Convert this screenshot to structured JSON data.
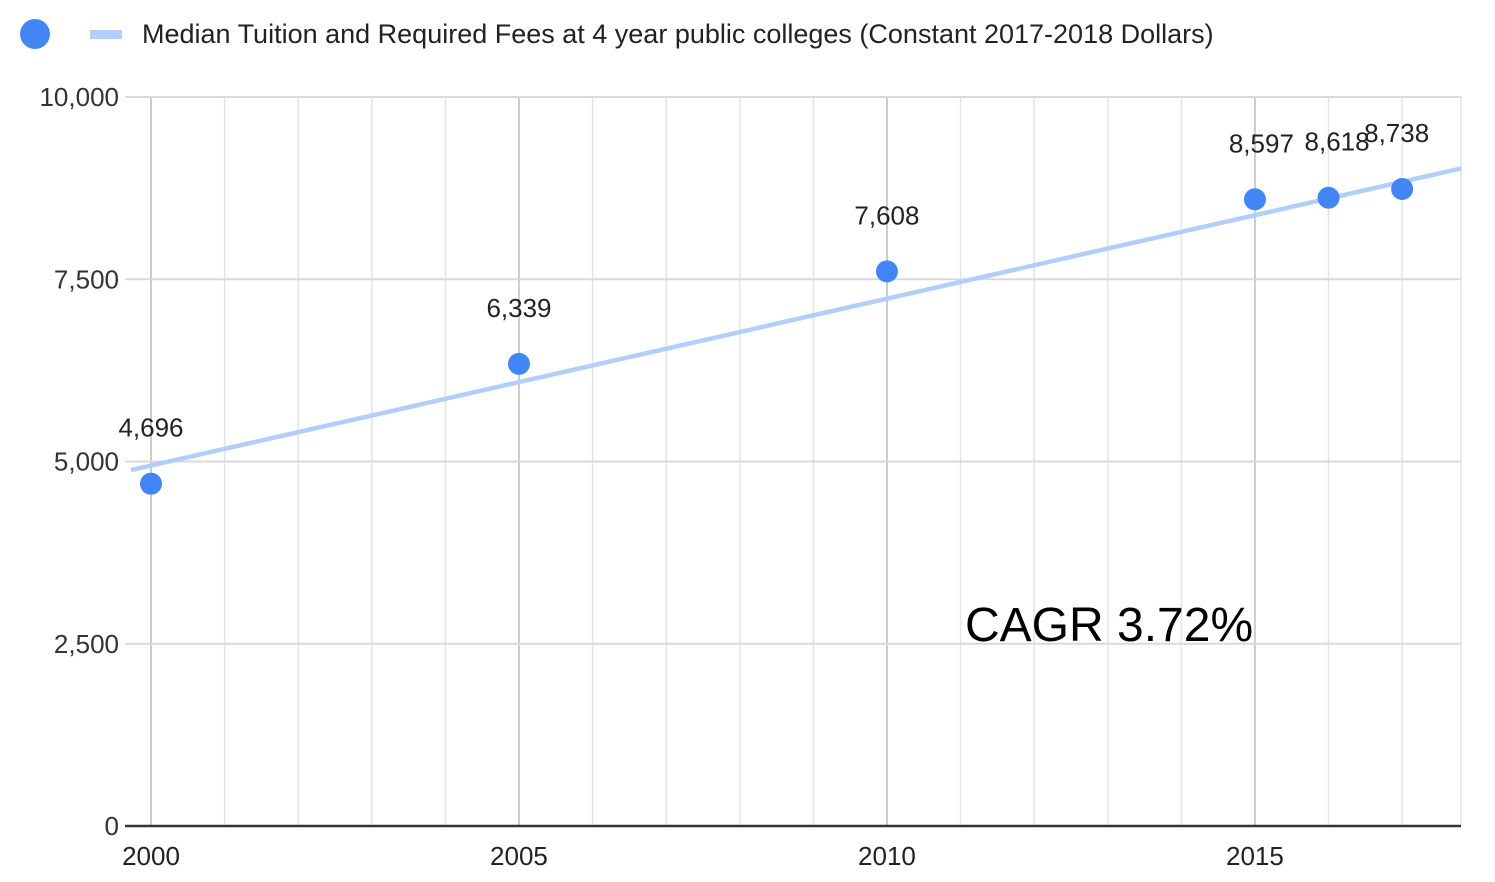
{
  "chart_data": {
    "type": "scatter",
    "legend": {
      "position": "top-left",
      "scatter_label": "",
      "trendline_label": "Median Tuition and Required Fees at 4 year public colleges (Constant 2017-2018 Dollars)"
    },
    "x": [
      2000,
      2005,
      2010,
      2015,
      2016,
      2017
    ],
    "y": [
      4696,
      6339,
      7608,
      8597,
      8618,
      8738
    ],
    "data_labels": [
      "4,696",
      "6,339",
      "7,608",
      "8,597",
      "8,618",
      "8,738"
    ],
    "trendline": {
      "type": "linear",
      "x": [
        2000,
        2017
      ],
      "y": [
        4930,
        9010
      ]
    },
    "xlim": [
      2000,
      2017.8
    ],
    "ylim": [
      0,
      10000
    ],
    "x_ticks": [
      2000,
      2005,
      2010,
      2015
    ],
    "x_tick_labels": [
      "2000",
      "2005",
      "2010",
      "2015"
    ],
    "y_ticks": [
      0,
      2500,
      5000,
      7500,
      10000
    ],
    "y_tick_labels": [
      "0",
      "2,500",
      "5,000",
      "7,500",
      "10,000"
    ],
    "grid": true,
    "annotation": "CAGR 3.72%",
    "colors": {
      "points": "#4285f4",
      "trendline": "#b3cefa",
      "grid": "#d9d9d9",
      "axis": "#333333"
    }
  }
}
